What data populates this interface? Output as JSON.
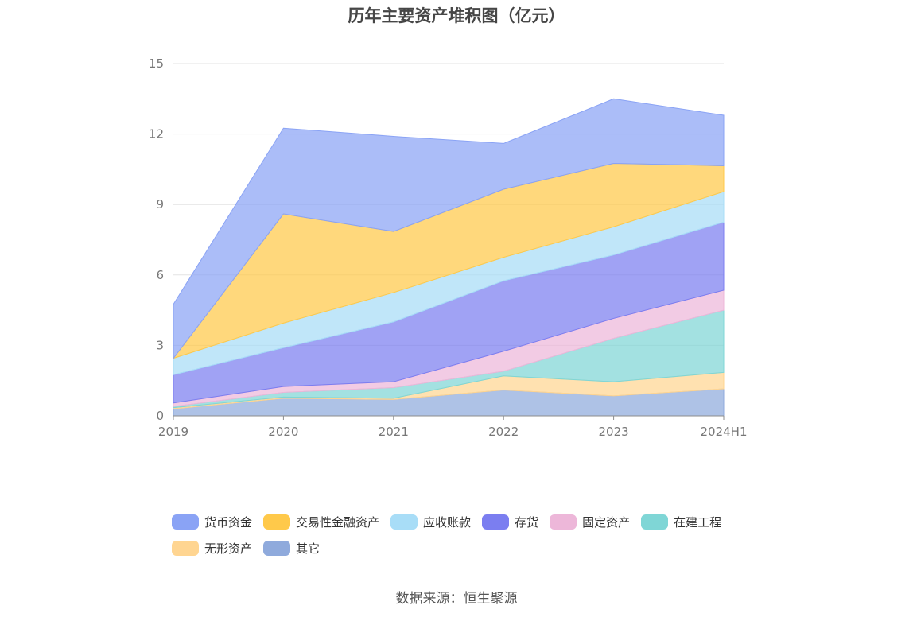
{
  "title": "历年主要资产堆积图（亿元）",
  "source": "数据来源：恒生聚源",
  "chart_data": {
    "type": "area",
    "stacked": true,
    "categories": [
      "2019",
      "2020",
      "2021",
      "2022",
      "2023",
      "2024H1"
    ],
    "ylim": [
      0,
      15
    ],
    "yticks": [
      "0",
      "3",
      "6",
      "9",
      "12",
      "15"
    ],
    "grid": true,
    "legend_position": "bottom",
    "series": [
      {
        "name": "其它",
        "color": "#8FAADC",
        "values": [
          0.3,
          0.75,
          0.7,
          1.1,
          0.85,
          1.15
        ]
      },
      {
        "name": "无形资产",
        "color": "#FFD591",
        "values": [
          0.05,
          0.05,
          0.05,
          0.6,
          0.6,
          0.7
        ]
      },
      {
        "name": "在建工程",
        "color": "#7FD6D6",
        "values": [
          0.05,
          0.2,
          0.45,
          0.2,
          1.85,
          2.65
        ]
      },
      {
        "name": "固定资产",
        "color": "#EDB7D9",
        "values": [
          0.15,
          0.25,
          0.25,
          0.85,
          0.85,
          0.85
        ]
      },
      {
        "name": "存货",
        "color": "#7B7EF0",
        "values": [
          1.2,
          1.65,
          2.55,
          3.0,
          2.7,
          2.9
        ]
      },
      {
        "name": "应收账款",
        "color": "#A8DDF7",
        "values": [
          0.7,
          1.05,
          1.25,
          1.0,
          1.2,
          1.3
        ]
      },
      {
        "name": "交易性金融资产",
        "color": "#FFC94A",
        "values": [
          0.0,
          4.65,
          2.6,
          2.9,
          2.7,
          1.1
        ]
      },
      {
        "name": "货币资金",
        "color": "#8AA3F5",
        "values": [
          2.3,
          3.65,
          4.05,
          1.95,
          2.75,
          2.15
        ]
      }
    ]
  },
  "legend": [
    {
      "label": "货币资金",
      "color": "#8AA3F5"
    },
    {
      "label": "交易性金融资产",
      "color": "#FFC94A"
    },
    {
      "label": "应收账款",
      "color": "#A8DDF7"
    },
    {
      "label": "存货",
      "color": "#7B7EF0"
    },
    {
      "label": "固定资产",
      "color": "#EDB7D9"
    },
    {
      "label": "在建工程",
      "color": "#7FD6D6"
    },
    {
      "label": "无形资产",
      "color": "#FFD591"
    },
    {
      "label": "其它",
      "color": "#8FAADC"
    }
  ]
}
